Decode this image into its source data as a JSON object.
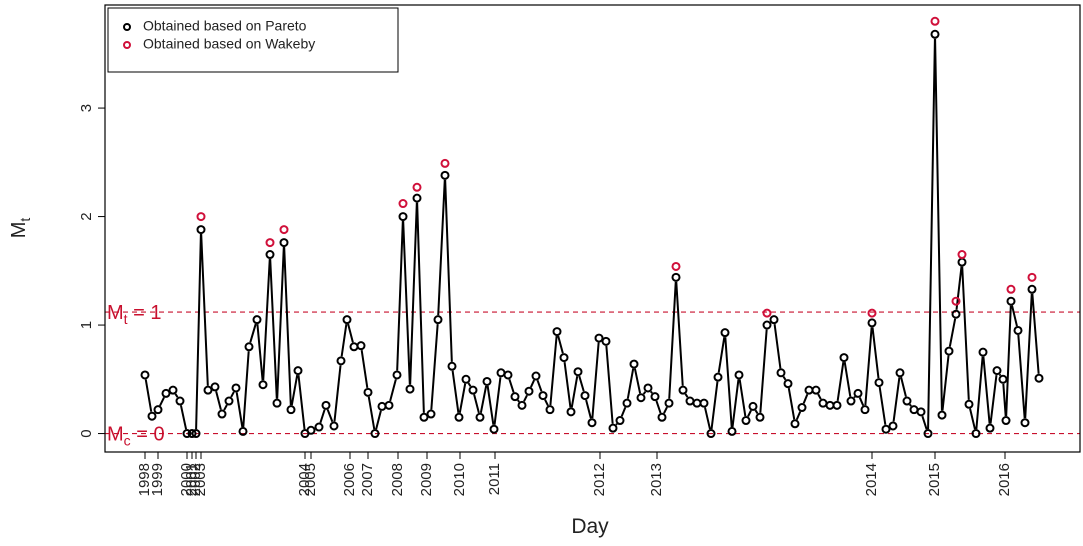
{
  "chart_data": {
    "type": "line",
    "x_label": "Day",
    "y_label": {
      "main": "M",
      "sub": "t"
    },
    "xlim": [
      0,
      975
    ],
    "ylim": [
      -0.17,
      3.95
    ],
    "yticks": [
      0,
      1,
      2,
      3
    ],
    "xticks": [
      {
        "value": 40,
        "label": "1998"
      },
      {
        "value": 53,
        "label": "1999"
      },
      {
        "value": 82,
        "label": "2000"
      },
      {
        "value": 87,
        "label": "2001"
      },
      {
        "value": 91,
        "label": "2002"
      },
      {
        "value": 96,
        "label": "2003"
      },
      {
        "value": 200,
        "label": "2004"
      },
      {
        "value": 206,
        "label": "2005"
      },
      {
        "value": 245,
        "label": "2006"
      },
      {
        "value": 263,
        "label": "2007"
      },
      {
        "value": 293,
        "label": "2008"
      },
      {
        "value": 322,
        "label": "2009"
      },
      {
        "value": 355,
        "label": "2010"
      },
      {
        "value": 390,
        "label": "2011"
      },
      {
        "value": 495,
        "label": "2012"
      },
      {
        "value": 552,
        "label": "2013"
      },
      {
        "value": 767,
        "label": "2014"
      },
      {
        "value": 830,
        "label": "2015"
      },
      {
        "value": 900,
        "label": "2016"
      }
    ],
    "legend": "top-left",
    "series": [
      {
        "name": "Obtained based on Pareto",
        "color": "#000000",
        "style": "line-points",
        "x": [
          40,
          47,
          53,
          61,
          68,
          75,
          82,
          87,
          91,
          96,
          103,
          110,
          117,
          124,
          131,
          138,
          144,
          152,
          158,
          165,
          172,
          179,
          186,
          193,
          200,
          206,
          214,
          221,
          229,
          236,
          242,
          249,
          256,
          263,
          270,
          277,
          284,
          292,
          298,
          305,
          312,
          319,
          326,
          333,
          340,
          347,
          354,
          361,
          368,
          375,
          382,
          389,
          396,
          403,
          410,
          417,
          424,
          431,
          438,
          445,
          452,
          459,
          466,
          473,
          480,
          487,
          494,
          501,
          508,
          515,
          522,
          529,
          536,
          543,
          550,
          557,
          564,
          571,
          578,
          585,
          592,
          599,
          606,
          613,
          620,
          627,
          634,
          641,
          648,
          655,
          662,
          669,
          676,
          683,
          690,
          697,
          704,
          711,
          718,
          725,
          732,
          739,
          746,
          753,
          760,
          767,
          774,
          781,
          788,
          795,
          802,
          809,
          816,
          823,
          830,
          837,
          844,
          851,
          857,
          864,
          871,
          878,
          885,
          892,
          898,
          901,
          906,
          913,
          920,
          927,
          934
        ],
        "values": [
          0.54,
          0.16,
          0.22,
          0.37,
          0.4,
          0.3,
          0.0,
          0.0,
          0.0,
          1.88,
          0.4,
          0.43,
          0.18,
          0.3,
          0.42,
          0.02,
          0.8,
          1.05,
          0.45,
          1.65,
          0.28,
          1.76,
          0.22,
          0.58,
          0.0,
          0.03,
          0.06,
          0.26,
          0.07,
          0.67,
          1.05,
          0.8,
          0.81,
          0.38,
          0.0,
          0.25,
          0.26,
          0.54,
          2.0,
          0.41,
          2.17,
          0.15,
          0.18,
          1.05,
          2.38,
          0.62,
          0.15,
          0.5,
          0.4,
          0.15,
          0.48,
          0.04,
          0.56,
          0.54,
          0.34,
          0.26,
          0.39,
          0.53,
          0.35,
          0.22,
          0.94,
          0.7,
          0.2,
          0.57,
          0.35,
          0.1,
          0.88,
          0.85,
          0.05,
          0.12,
          0.28,
          0.64,
          0.33,
          0.42,
          0.34,
          0.15,
          0.28,
          1.44,
          0.4,
          0.3,
          0.28,
          0.28,
          0.0,
          0.52,
          0.93,
          0.02,
          0.54,
          0.12,
          0.25,
          0.15,
          1.0,
          1.05,
          0.56,
          0.46,
          0.09,
          0.24,
          0.4,
          0.4,
          0.28,
          0.26,
          0.26,
          0.7,
          0.3,
          0.37,
          0.22,
          1.02,
          0.47,
          0.04,
          0.07,
          0.56,
          0.3,
          0.22,
          0.2,
          0.0,
          3.68,
          0.17,
          0.76,
          1.1,
          1.58,
          0.27,
          0.0,
          0.75,
          0.05,
          0.58,
          0.5,
          0.12,
          1.22,
          0.95,
          0.1,
          1.33,
          0.51
        ]
      },
      {
        "name": "Obtained based on Wakeby",
        "color": "#d0103a",
        "style": "points",
        "x": [
          96,
          165,
          179,
          298,
          312,
          340,
          571,
          662,
          767,
          830,
          851,
          857,
          906,
          927
        ],
        "values": [
          2.0,
          1.76,
          1.88,
          2.12,
          2.27,
          2.49,
          1.54,
          1.11,
          1.11,
          3.8,
          1.22,
          1.65,
          1.33,
          1.44
        ]
      }
    ],
    "hlines": [
      {
        "value": 1.12,
        "main": "M",
        "sub": "t",
        "rest": " = 1",
        "color": "#c8102e"
      },
      {
        "value": 0,
        "main": "M",
        "sub": "c",
        "rest": " = 0",
        "color": "#c8102e"
      }
    ]
  }
}
